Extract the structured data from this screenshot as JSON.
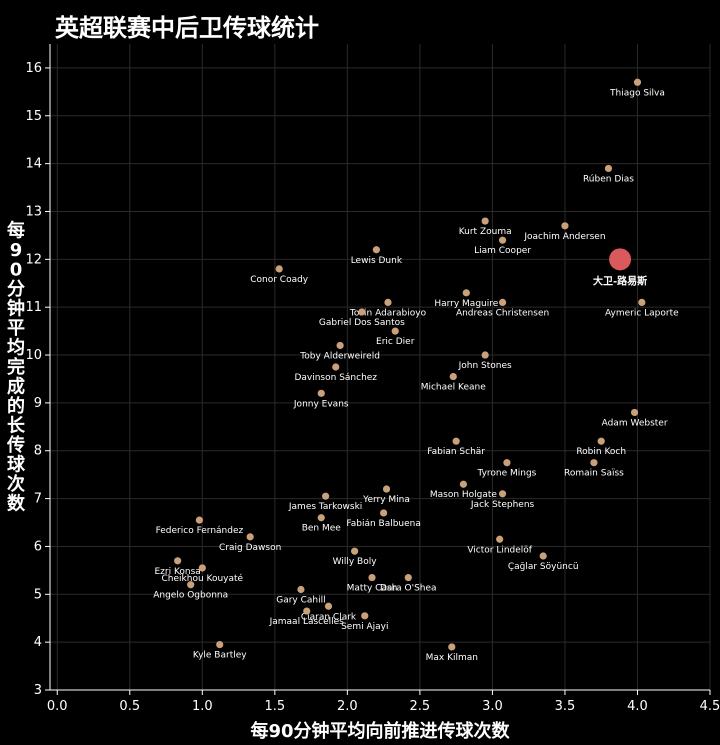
{
  "chart_data": {
    "type": "scatter",
    "title": "英超联赛中后卫传球统计",
    "xlabel": "每90分钟平均向前推进传球次数",
    "ylabel": "每90分钟平均完成的长传球次数",
    "xlim": [
      -0.05,
      4.5
    ],
    "ylim": [
      3,
      16.5
    ],
    "xticks": [
      "0.0",
      "0.5",
      "1.0",
      "1.5",
      "2.0",
      "2.5",
      "3.0",
      "3.5",
      "4.0",
      "4.5"
    ],
    "yticks": [
      "3",
      "4",
      "5",
      "6",
      "7",
      "8",
      "9",
      "10",
      "11",
      "12",
      "13",
      "14",
      "15",
      "16"
    ],
    "grid": true,
    "point_color": "#c9a07a",
    "highlight_color": "#d9595c",
    "highlight": {
      "name": "大卫-路易斯",
      "x": 3.88,
      "y": 12.0
    },
    "points": [
      {
        "name": "Thiago Silva",
        "x": 4.0,
        "y": 15.7
      },
      {
        "name": "Rúben Dias",
        "x": 3.8,
        "y": 13.9
      },
      {
        "name": "Kurt Zouma",
        "x": 2.95,
        "y": 12.8
      },
      {
        "name": "Joachim Andersen",
        "x": 3.5,
        "y": 12.7
      },
      {
        "name": "Liam Cooper",
        "x": 3.07,
        "y": 12.4
      },
      {
        "name": "Lewis Dunk",
        "x": 2.2,
        "y": 12.2
      },
      {
        "name": "Conor Coady",
        "x": 1.53,
        "y": 11.8
      },
      {
        "name": "Harry Maguire",
        "x": 2.82,
        "y": 11.3
      },
      {
        "name": "Andreas Christensen",
        "x": 3.07,
        "y": 11.1
      },
      {
        "name": "Aymeric Laporte",
        "x": 4.03,
        "y": 11.1
      },
      {
        "name": "Tosin Adarabioyo",
        "x": 2.28,
        "y": 11.1
      },
      {
        "name": "Gabriel Dos Santos",
        "x": 2.1,
        "y": 10.9
      },
      {
        "name": "Eric Dier",
        "x": 2.33,
        "y": 10.5
      },
      {
        "name": "Toby Alderweireld",
        "x": 1.95,
        "y": 10.2
      },
      {
        "name": "John Stones",
        "x": 2.95,
        "y": 10.0
      },
      {
        "name": "Davinson Sánchez",
        "x": 1.92,
        "y": 9.75
      },
      {
        "name": "Michael Keane",
        "x": 2.73,
        "y": 9.55
      },
      {
        "name": "Jonny Evans",
        "x": 1.82,
        "y": 9.2
      },
      {
        "name": "Adam Webster",
        "x": 3.98,
        "y": 8.8
      },
      {
        "name": "Fabian Schär",
        "x": 2.75,
        "y": 8.2
      },
      {
        "name": "Robin Koch",
        "x": 3.75,
        "y": 8.2
      },
      {
        "name": "Tyrone Mings",
        "x": 3.1,
        "y": 7.75
      },
      {
        "name": "Romain Saïss",
        "x": 3.7,
        "y": 7.75
      },
      {
        "name": "Mason Holgate",
        "x": 2.8,
        "y": 7.3
      },
      {
        "name": "Yerry Mina",
        "x": 2.27,
        "y": 7.2
      },
      {
        "name": "Jack Stephens",
        "x": 3.07,
        "y": 7.1
      },
      {
        "name": "James Tarkowski",
        "x": 1.85,
        "y": 7.05
      },
      {
        "name": "Ben Mee",
        "x": 1.82,
        "y": 6.6
      },
      {
        "name": "Fabián Balbuena",
        "x": 2.25,
        "y": 6.7
      },
      {
        "name": "Federico Fernández",
        "x": 0.98,
        "y": 6.55
      },
      {
        "name": "Craig Dawson",
        "x": 1.33,
        "y": 6.2
      },
      {
        "name": "Victor Lindelöf",
        "x": 3.05,
        "y": 6.15
      },
      {
        "name": "Willy Boly",
        "x": 2.05,
        "y": 5.9
      },
      {
        "name": "Çağlar Söyüncü",
        "x": 3.35,
        "y": 5.8
      },
      {
        "name": "Ezri Konsa",
        "x": 0.83,
        "y": 5.7
      },
      {
        "name": "Cheikhou Kouyaté",
        "x": 1.0,
        "y": 5.55
      },
      {
        "name": "Angelo Ogbonna",
        "x": 0.92,
        "y": 5.2
      },
      {
        "name": "Dara O'Shea",
        "x": 2.42,
        "y": 5.35
      },
      {
        "name": "Matty Cash",
        "x": 2.17,
        "y": 5.35
      },
      {
        "name": "Gary Cahill",
        "x": 1.68,
        "y": 5.1
      },
      {
        "name": "Ciaran Clark",
        "x": 1.87,
        "y": 4.75
      },
      {
        "name": "Jamaal Lascelles",
        "x": 1.72,
        "y": 4.65
      },
      {
        "name": "Semi Ajayi",
        "x": 2.12,
        "y": 4.55
      },
      {
        "name": "Max Kilman",
        "x": 2.72,
        "y": 3.9
      },
      {
        "name": "Kyle Bartley",
        "x": 1.12,
        "y": 3.95
      }
    ]
  }
}
